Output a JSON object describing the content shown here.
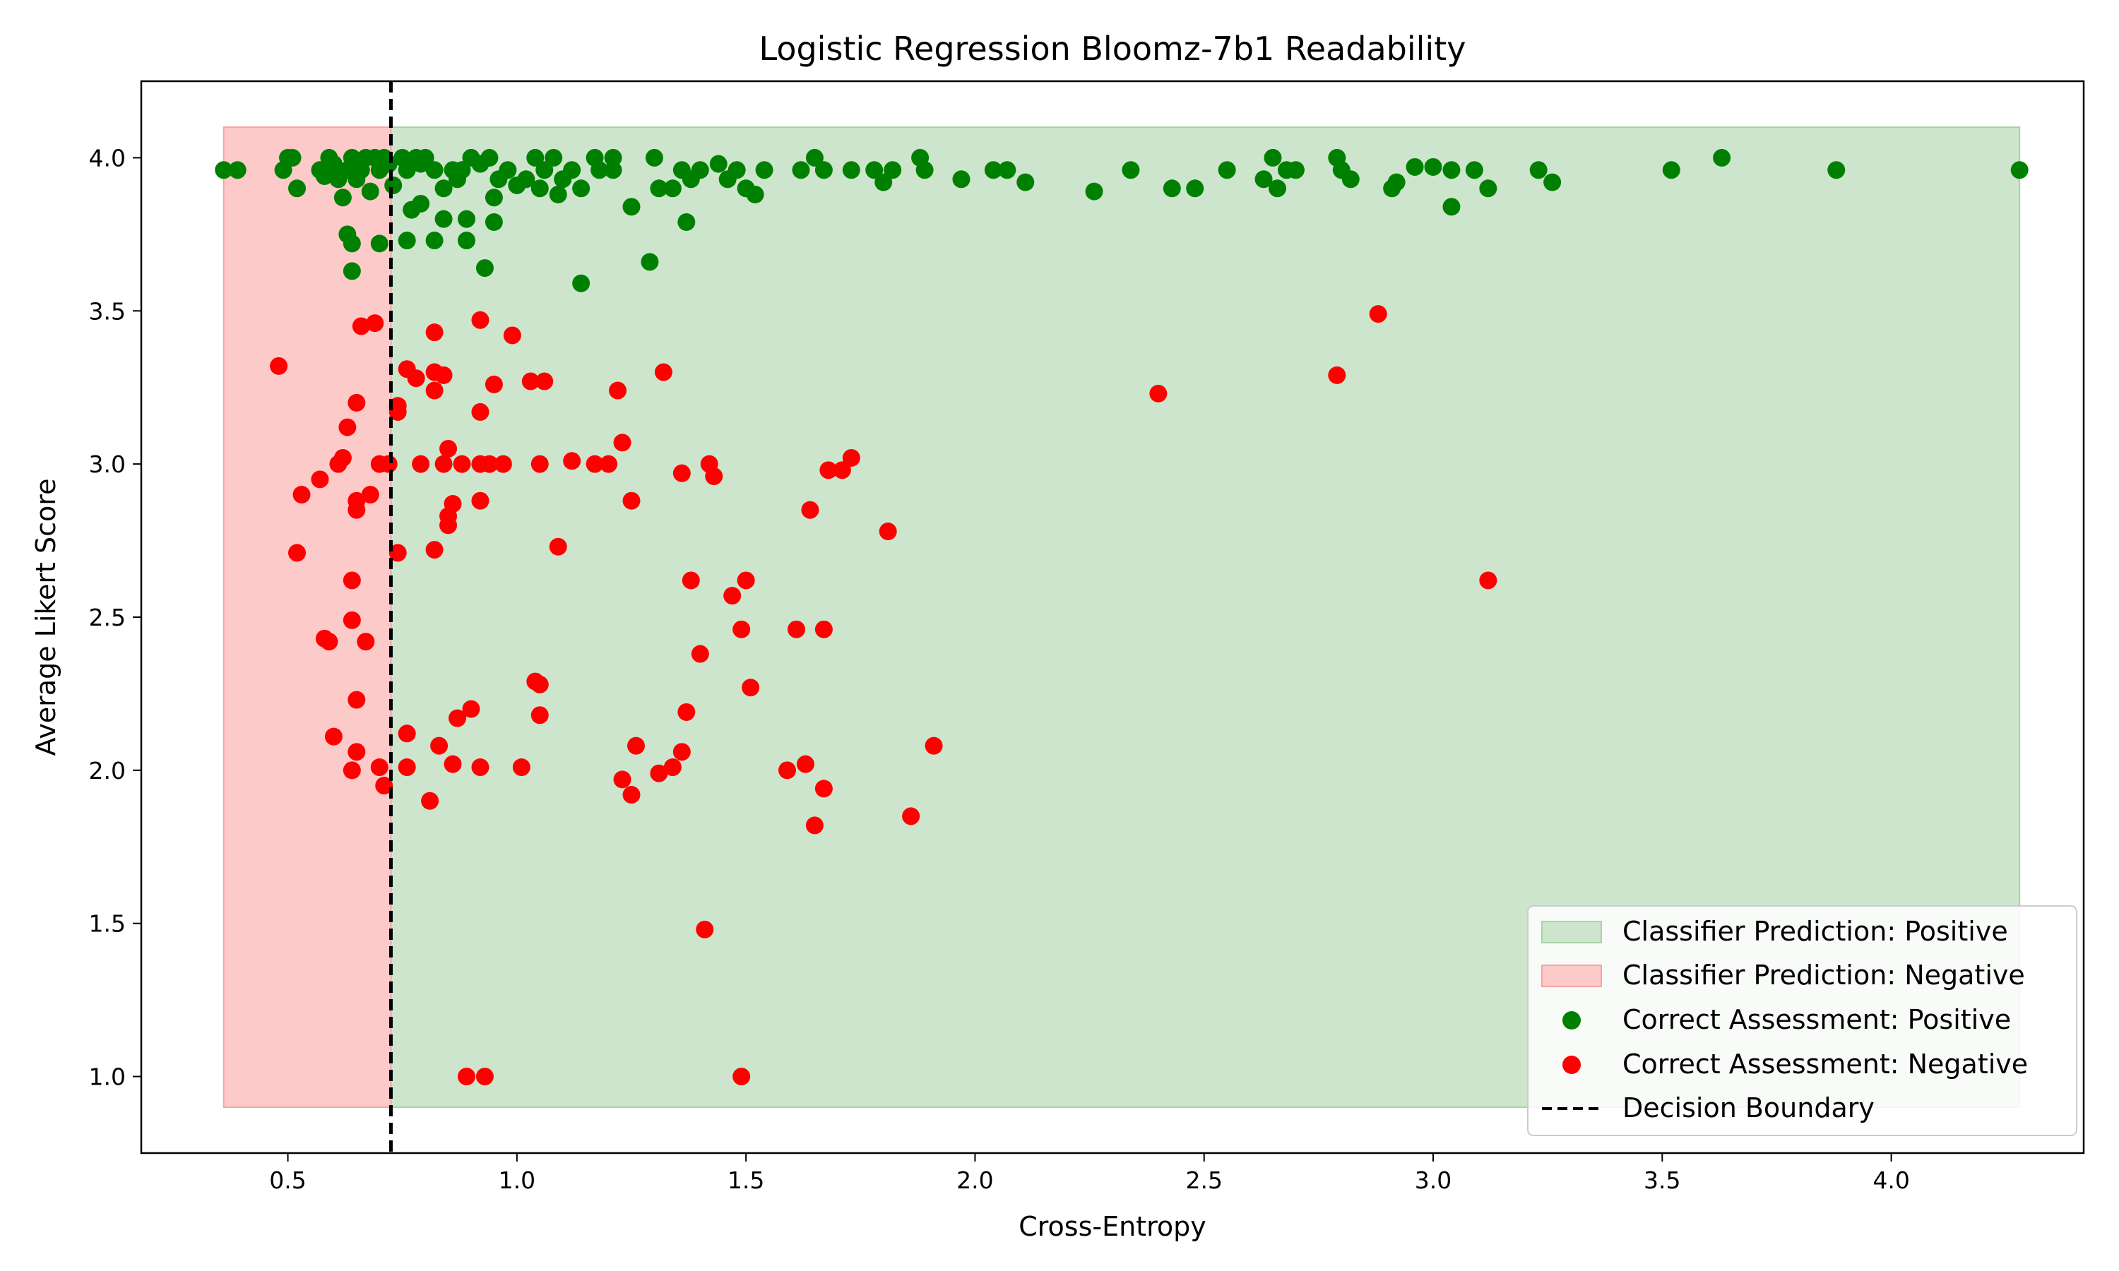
{
  "chart_data": {
    "type": "scatter",
    "title": "Logistic Regression Bloomz-7b1 Readability",
    "xlabel": "Cross-Entropy",
    "ylabel": "Average Likert Score",
    "xlim": [
      0.18,
      4.42
    ],
    "ylim": [
      0.75,
      4.25
    ],
    "xticks": [
      0.5,
      1.0,
      1.5,
      2.0,
      2.5,
      3.0,
      3.5,
      4.0
    ],
    "yticks": [
      1.0,
      1.5,
      2.0,
      2.5,
      3.0,
      3.5,
      4.0
    ],
    "grid": false,
    "legend_position": "bottom-right",
    "decision_boundary": 0.725,
    "regions": [
      {
        "name": "Classifier Prediction: Positive",
        "color": "#cde5cd",
        "x": [
          0.725,
          4.28
        ],
        "y": [
          0.9,
          4.1
        ]
      },
      {
        "name": "Classifier Prediction: Negative",
        "color": "#fdcaca",
        "x": [
          0.36,
          0.725
        ],
        "y": [
          0.9,
          4.1
        ]
      }
    ],
    "series": [
      {
        "name": "Correct Assessment: Positive",
        "color": "#008000",
        "points": [
          [
            0.36,
            3.96
          ],
          [
            0.39,
            3.96
          ],
          [
            0.49,
            3.96
          ],
          [
            0.5,
            4.0
          ],
          [
            0.51,
            4.0
          ],
          [
            0.52,
            3.9
          ],
          [
            0.57,
            3.96
          ],
          [
            0.58,
            3.94
          ],
          [
            0.59,
            4.0
          ],
          [
            0.6,
            3.98
          ],
          [
            0.61,
            3.93
          ],
          [
            0.62,
            3.87
          ],
          [
            0.63,
            3.96
          ],
          [
            0.64,
            4.0
          ],
          [
            0.65,
            3.93
          ],
          [
            0.66,
            3.96
          ],
          [
            0.67,
            4.0
          ],
          [
            0.68,
            3.89
          ],
          [
            0.69,
            4.0
          ],
          [
            0.7,
            3.96
          ],
          [
            0.71,
            4.0
          ],
          [
            0.72,
            3.98
          ],
          [
            0.73,
            3.91
          ],
          [
            0.63,
            3.75
          ],
          [
            0.64,
            3.72
          ],
          [
            0.64,
            3.63
          ],
          [
            0.7,
            3.72
          ],
          [
            0.75,
            4.0
          ],
          [
            0.76,
            3.96
          ],
          [
            0.78,
            4.0
          ],
          [
            0.79,
            3.98
          ],
          [
            0.8,
            4.0
          ],
          [
            0.82,
            3.96
          ],
          [
            0.84,
            3.9
          ],
          [
            0.86,
            3.96
          ],
          [
            0.87,
            3.93
          ],
          [
            0.88,
            3.96
          ],
          [
            0.9,
            4.0
          ],
          [
            0.92,
            3.98
          ],
          [
            0.94,
            4.0
          ],
          [
            0.95,
            3.87
          ],
          [
            0.96,
            3.93
          ],
          [
            0.98,
            3.96
          ],
          [
            1.0,
            3.91
          ],
          [
            1.02,
            3.93
          ],
          [
            1.04,
            4.0
          ],
          [
            1.05,
            3.9
          ],
          [
            1.06,
            3.96
          ],
          [
            1.08,
            4.0
          ],
          [
            1.09,
            3.88
          ],
          [
            1.1,
            3.93
          ],
          [
            1.12,
            3.96
          ],
          [
            1.14,
            3.9
          ],
          [
            1.17,
            4.0
          ],
          [
            1.18,
            3.96
          ],
          [
            1.21,
            4.0
          ],
          [
            1.21,
            3.96
          ],
          [
            1.25,
            3.84
          ],
          [
            1.3,
            4.0
          ],
          [
            1.31,
            3.9
          ],
          [
            1.34,
            3.9
          ],
          [
            1.36,
            3.96
          ],
          [
            1.38,
            3.93
          ],
          [
            1.4,
            3.96
          ],
          [
            1.44,
            3.98
          ],
          [
            1.46,
            3.93
          ],
          [
            1.48,
            3.96
          ],
          [
            1.5,
            3.9
          ],
          [
            1.52,
            3.88
          ],
          [
            1.54,
            3.96
          ],
          [
            1.62,
            3.96
          ],
          [
            1.65,
            4.0
          ],
          [
            1.67,
            3.96
          ],
          [
            1.73,
            3.96
          ],
          [
            1.78,
            3.96
          ],
          [
            1.8,
            3.92
          ],
          [
            1.82,
            3.96
          ],
          [
            1.88,
            4.0
          ],
          [
            1.89,
            3.96
          ],
          [
            1.97,
            3.93
          ],
          [
            2.04,
            3.96
          ],
          [
            2.07,
            3.96
          ],
          [
            2.11,
            3.92
          ],
          [
            2.26,
            3.89
          ],
          [
            2.34,
            3.96
          ],
          [
            2.43,
            3.9
          ],
          [
            2.48,
            3.9
          ],
          [
            2.55,
            3.96
          ],
          [
            2.63,
            3.93
          ],
          [
            2.65,
            4.0
          ],
          [
            2.66,
            3.9
          ],
          [
            2.68,
            3.96
          ],
          [
            2.7,
            3.96
          ],
          [
            2.79,
            4.0
          ],
          [
            2.8,
            3.96
          ],
          [
            2.82,
            3.93
          ],
          [
            2.91,
            3.9
          ],
          [
            2.92,
            3.92
          ],
          [
            2.96,
            3.97
          ],
          [
            3.0,
            3.97
          ],
          [
            3.04,
            3.96
          ],
          [
            3.04,
            3.84
          ],
          [
            3.09,
            3.96
          ],
          [
            3.12,
            3.9
          ],
          [
            3.23,
            3.96
          ],
          [
            3.26,
            3.92
          ],
          [
            3.52,
            3.96
          ],
          [
            3.63,
            4.0
          ],
          [
            3.88,
            3.96
          ],
          [
            4.28,
            3.96
          ],
          [
            0.77,
            3.83
          ],
          [
            0.79,
            3.85
          ],
          [
            0.76,
            3.73
          ],
          [
            0.82,
            3.73
          ],
          [
            0.84,
            3.8
          ],
          [
            0.89,
            3.8
          ],
          [
            0.89,
            3.73
          ],
          [
            0.93,
            3.64
          ],
          [
            0.95,
            3.79
          ],
          [
            1.14,
            3.59
          ],
          [
            1.29,
            3.66
          ],
          [
            1.37,
            3.79
          ]
        ]
      },
      {
        "name": "Correct Assessment: Negative",
        "color": "#ff0000",
        "points": [
          [
            0.48,
            3.32
          ],
          [
            0.52,
            2.71
          ],
          [
            0.53,
            2.9
          ],
          [
            0.57,
            2.95
          ],
          [
            0.58,
            2.43
          ],
          [
            0.59,
            2.42
          ],
          [
            0.6,
            2.11
          ],
          [
            0.61,
            3.0
          ],
          [
            0.62,
            3.02
          ],
          [
            0.63,
            3.12
          ],
          [
            0.64,
            2.62
          ],
          [
            0.64,
            2.49
          ],
          [
            0.64,
            2.0
          ],
          [
            0.65,
            3.2
          ],
          [
            0.65,
            2.88
          ],
          [
            0.65,
            2.85
          ],
          [
            0.65,
            2.23
          ],
          [
            0.65,
            2.06
          ],
          [
            0.66,
            3.45
          ],
          [
            0.67,
            2.42
          ],
          [
            0.68,
            2.9
          ],
          [
            0.69,
            3.46
          ],
          [
            0.7,
            3.0
          ],
          [
            0.7,
            2.01
          ],
          [
            0.71,
            1.95
          ],
          [
            0.72,
            3.0
          ],
          [
            0.74,
            3.19
          ],
          [
            0.74,
            3.17
          ],
          [
            0.74,
            2.71
          ],
          [
            0.76,
            3.31
          ],
          [
            0.76,
            2.12
          ],
          [
            0.76,
            2.01
          ],
          [
            0.78,
            3.28
          ],
          [
            0.79,
            3.0
          ],
          [
            0.81,
            1.9
          ],
          [
            0.82,
            3.43
          ],
          [
            0.82,
            3.3
          ],
          [
            0.82,
            3.24
          ],
          [
            0.82,
            2.72
          ],
          [
            0.83,
            2.08
          ],
          [
            0.84,
            3.29
          ],
          [
            0.84,
            3.0
          ],
          [
            0.85,
            3.05
          ],
          [
            0.85,
            2.8
          ],
          [
            0.85,
            2.83
          ],
          [
            0.86,
            2.87
          ],
          [
            0.86,
            2.02
          ],
          [
            0.87,
            2.17
          ],
          [
            0.88,
            3.0
          ],
          [
            0.9,
            2.2
          ],
          [
            0.89,
            1.0
          ],
          [
            0.92,
            3.47
          ],
          [
            0.92,
            3.17
          ],
          [
            0.92,
            3.0
          ],
          [
            0.92,
            2.88
          ],
          [
            0.92,
            2.01
          ],
          [
            0.93,
            1.0
          ],
          [
            0.94,
            3.0
          ],
          [
            0.95,
            3.26
          ],
          [
            0.97,
            3.0
          ],
          [
            0.99,
            3.42
          ],
          [
            1.01,
            2.01
          ],
          [
            1.03,
            3.27
          ],
          [
            1.04,
            2.29
          ],
          [
            1.05,
            3.0
          ],
          [
            1.05,
            2.28
          ],
          [
            1.05,
            2.18
          ],
          [
            1.06,
            3.27
          ],
          [
            1.09,
            2.73
          ],
          [
            1.12,
            3.01
          ],
          [
            1.17,
            3.0
          ],
          [
            1.2,
            3.0
          ],
          [
            1.22,
            3.24
          ],
          [
            1.23,
            3.07
          ],
          [
            1.23,
            1.97
          ],
          [
            1.25,
            1.92
          ],
          [
            1.25,
            2.88
          ],
          [
            1.26,
            2.08
          ],
          [
            1.31,
            1.99
          ],
          [
            1.32,
            3.3
          ],
          [
            1.34,
            2.01
          ],
          [
            1.36,
            2.06
          ],
          [
            1.36,
            2.97
          ],
          [
            1.37,
            2.19
          ],
          [
            1.38,
            2.62
          ],
          [
            1.4,
            2.38
          ],
          [
            1.41,
            1.48
          ],
          [
            1.42,
            3.0
          ],
          [
            1.43,
            2.96
          ],
          [
            1.47,
            2.57
          ],
          [
            1.49,
            1.0
          ],
          [
            1.49,
            2.46
          ],
          [
            1.5,
            2.62
          ],
          [
            1.51,
            2.27
          ],
          [
            1.59,
            2.0
          ],
          [
            1.61,
            2.46
          ],
          [
            1.63,
            2.02
          ],
          [
            1.64,
            2.85
          ],
          [
            1.65,
            1.82
          ],
          [
            1.67,
            2.46
          ],
          [
            1.67,
            1.94
          ],
          [
            1.68,
            2.98
          ],
          [
            1.71,
            2.98
          ],
          [
            1.73,
            3.02
          ],
          [
            1.81,
            2.78
          ],
          [
            1.86,
            1.85
          ],
          [
            1.91,
            2.08
          ],
          [
            2.4,
            3.23
          ],
          [
            2.79,
            3.29
          ],
          [
            2.88,
            3.49
          ],
          [
            3.12,
            2.62
          ]
        ]
      }
    ],
    "boundary_label": "Decision Boundary",
    "boundary_color": "#000000"
  }
}
